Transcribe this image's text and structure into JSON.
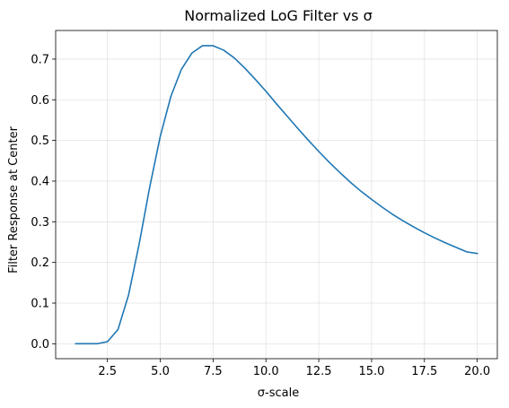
{
  "chart_data": {
    "type": "line",
    "title": "Normalized LoG Filter vs σ",
    "xlabel": "σ-scale",
    "ylabel": "Filter Response at Center",
    "xlim": [
      0.05,
      20.95
    ],
    "ylim": [
      -0.0367,
      0.7704
    ],
    "grid": true,
    "x_ticks": [
      2.5,
      5.0,
      7.5,
      10.0,
      12.5,
      15.0,
      17.5,
      20.0
    ],
    "x_tick_labels": [
      "2.5",
      "5.0",
      "7.5",
      "10.0",
      "12.5",
      "15.0",
      "17.5",
      "20.0"
    ],
    "y_ticks": [
      0.0,
      0.1,
      0.2,
      0.3,
      0.4,
      0.5,
      0.6,
      0.7
    ],
    "y_tick_labels": [
      "0.0",
      "0.1",
      "0.2",
      "0.3",
      "0.4",
      "0.5",
      "0.6",
      "0.7"
    ],
    "series": [
      {
        "color": "#1f77b4",
        "x": [
          1.0,
          1.5,
          2.0,
          2.5,
          3.0,
          3.5,
          4.0,
          4.5,
          5.0,
          5.5,
          6.0,
          6.5,
          7.0,
          7.5,
          8.0,
          8.5,
          9.0,
          9.5,
          10.0,
          10.5,
          11.0,
          11.5,
          12.0,
          12.5,
          13.0,
          13.5,
          14.0,
          14.5,
          15.0,
          15.5,
          16.0,
          16.5,
          17.0,
          17.5,
          18.0,
          18.5,
          19.0,
          19.5,
          20.0
        ],
        "y": [
          0.0,
          0.0,
          0.0,
          0.005,
          0.035,
          0.12,
          0.245,
          0.385,
          0.51,
          0.608,
          0.675,
          0.715,
          0.733,
          0.733,
          0.722,
          0.703,
          0.678,
          0.65,
          0.621,
          0.59,
          0.56,
          0.53,
          0.501,
          0.473,
          0.446,
          0.421,
          0.397,
          0.375,
          0.355,
          0.336,
          0.318,
          0.302,
          0.287,
          0.273,
          0.26,
          0.248,
          0.237,
          0.226,
          0.222
        ]
      }
    ]
  }
}
